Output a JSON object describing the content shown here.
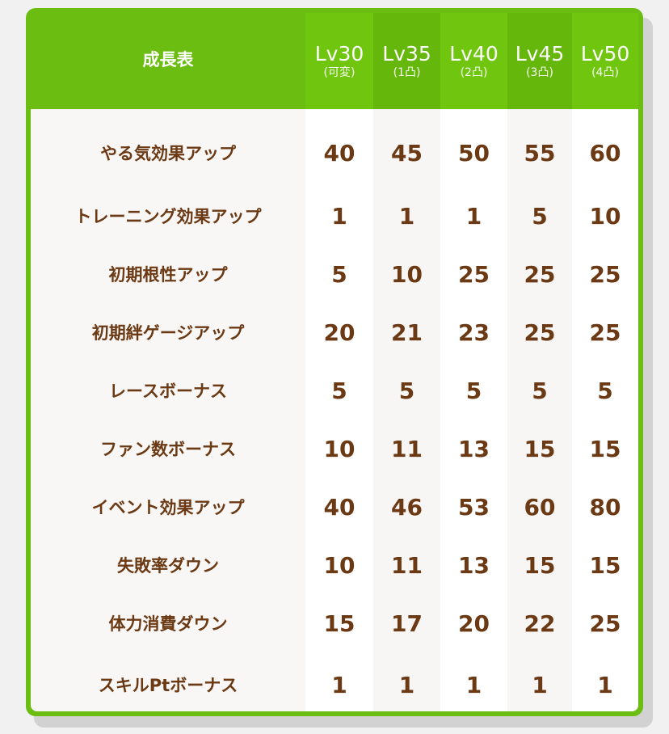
{
  "colors": {
    "header_green": "#6cbd12",
    "text_brown": "#6b3a14"
  },
  "table": {
    "title": "成長表",
    "columns": [
      {
        "level": "Lv30",
        "note": "(可変)"
      },
      {
        "level": "Lv35",
        "note": "(1凸)"
      },
      {
        "level": "Lv40",
        "note": "(2凸)"
      },
      {
        "level": "Lv45",
        "note": "(3凸)"
      },
      {
        "level": "Lv50",
        "note": "(4凸)"
      }
    ],
    "rows": [
      {
        "label": "やる気効果アップ",
        "values": [
          "40",
          "45",
          "50",
          "55",
          "60"
        ]
      },
      {
        "label": "トレーニング効果アップ",
        "values": [
          "1",
          "1",
          "1",
          "5",
          "10"
        ]
      },
      {
        "label": "初期根性アップ",
        "values": [
          "5",
          "10",
          "25",
          "25",
          "25"
        ]
      },
      {
        "label": "初期絆ゲージアップ",
        "values": [
          "20",
          "21",
          "23",
          "25",
          "25"
        ]
      },
      {
        "label": "レースボーナス",
        "values": [
          "5",
          "5",
          "5",
          "5",
          "5"
        ]
      },
      {
        "label": "ファン数ボーナス",
        "values": [
          "10",
          "11",
          "13",
          "15",
          "15"
        ]
      },
      {
        "label": "イベント効果アップ",
        "values": [
          "40",
          "46",
          "53",
          "60",
          "80"
        ]
      },
      {
        "label": "失敗率ダウン",
        "values": [
          "10",
          "11",
          "13",
          "15",
          "15"
        ]
      },
      {
        "label": "体力消費ダウン",
        "values": [
          "15",
          "17",
          "20",
          "22",
          "25"
        ]
      },
      {
        "label": "スキルPtボーナス",
        "values": [
          "1",
          "1",
          "1",
          "1",
          "1"
        ]
      }
    ]
  }
}
